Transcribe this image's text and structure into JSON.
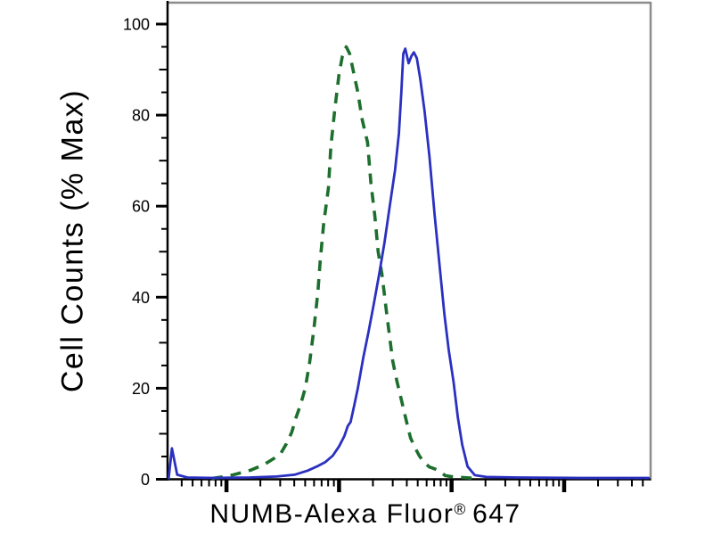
{
  "figure": {
    "ylabel": "Cell Counts (% Max)",
    "xlabel": {
      "full": "NUMB-Alexa Fluor® 647",
      "main": "NUMB-Alexa Fluor",
      "registered_mark": "®",
      "suffix": "647"
    }
  },
  "colors": {
    "background": "#ffffff",
    "axis": "#000000",
    "frame": "#8c8c8c",
    "tick_label": "#000000",
    "green_curve": "#1d6f2e",
    "blue_curve": "#2a30c0"
  },
  "chart_data": {
    "type": "line",
    "title": "",
    "xlabel": "NUMB-Alexa Fluor® 647",
    "ylabel": "Cell Counts (% Max)",
    "legend": "none",
    "grid": "off",
    "y_axis": {
      "min": 0,
      "max": 100,
      "labeled_tick_step": 20,
      "minor_tick_step": 5,
      "tick_labels": [
        "0",
        "20",
        "40",
        "60",
        "80",
        "100"
      ]
    },
    "x_axis": {
      "scale": "log",
      "tick_labels": [],
      "decade_width_frac": 0.233,
      "decade_anchor_fracs": [
        -0.111,
        0.122,
        0.355,
        0.588,
        0.821
      ]
    },
    "series": [
      {
        "name": "green-dashed-curve",
        "style": "dashed",
        "color": "#1d6f2e",
        "points_format": "[x_fraction_of_plot_width, percent_of_max]",
        "points": [
          [
            0.092,
            0.2
          ],
          [
            0.118,
            0.6
          ],
          [
            0.137,
            1.0
          ],
          [
            0.155,
            1.5
          ],
          [
            0.172,
            2.0
          ],
          [
            0.19,
            2.8
          ],
          [
            0.207,
            3.7
          ],
          [
            0.222,
            4.7
          ],
          [
            0.235,
            5.8
          ],
          [
            0.246,
            7.8
          ],
          [
            0.257,
            10.3
          ],
          [
            0.266,
            13.6
          ],
          [
            0.275,
            16.3
          ],
          [
            0.285,
            20
          ],
          [
            0.294,
            25.5
          ],
          [
            0.303,
            33
          ],
          [
            0.311,
            41
          ],
          [
            0.316,
            48
          ],
          [
            0.323,
            56
          ],
          [
            0.333,
            64
          ],
          [
            0.338,
            73
          ],
          [
            0.346,
            81
          ],
          [
            0.355,
            89
          ],
          [
            0.362,
            93
          ],
          [
            0.37,
            95
          ],
          [
            0.377,
            93.5
          ],
          [
            0.384,
            90
          ],
          [
            0.394,
            85
          ],
          [
            0.403,
            79
          ],
          [
            0.414,
            74
          ],
          [
            0.421,
            65
          ],
          [
            0.429,
            58
          ],
          [
            0.436,
            50
          ],
          [
            0.444,
            45
          ],
          [
            0.453,
            37
          ],
          [
            0.466,
            26
          ],
          [
            0.475,
            21.5
          ],
          [
            0.484,
            17.5
          ],
          [
            0.494,
            13
          ],
          [
            0.503,
            9.1
          ],
          [
            0.512,
            7.0
          ],
          [
            0.521,
            5.2
          ],
          [
            0.53,
            3.8
          ],
          [
            0.542,
            2.7
          ],
          [
            0.553,
            2.3
          ],
          [
            0.564,
            1.7
          ],
          [
            0.575,
            0.8
          ],
          [
            0.592,
            0.5
          ],
          [
            0.612,
            0.4
          ],
          [
            0.636,
            0.2
          ]
        ]
      },
      {
        "name": "blue-solid-curve",
        "style": "solid",
        "color": "#2a30c0",
        "points_format": "[x_fraction_of_plot_width, percent_of_max]",
        "points": [
          [
            0.002,
            0
          ],
          [
            0.009,
            6.8
          ],
          [
            0.02,
            1.0
          ],
          [
            0.041,
            0.4
          ],
          [
            0.096,
            0.3
          ],
          [
            0.17,
            0.4
          ],
          [
            0.226,
            0.6
          ],
          [
            0.263,
            1.0
          ],
          [
            0.29,
            1.9
          ],
          [
            0.309,
            2.8
          ],
          [
            0.327,
            3.8
          ],
          [
            0.342,
            5.2
          ],
          [
            0.355,
            7.2
          ],
          [
            0.366,
            9.5
          ],
          [
            0.373,
            11.7
          ],
          [
            0.379,
            12.6
          ],
          [
            0.386,
            16
          ],
          [
            0.394,
            20
          ],
          [
            0.405,
            26.6
          ],
          [
            0.416,
            32.4
          ],
          [
            0.427,
            38.5
          ],
          [
            0.438,
            45
          ],
          [
            0.449,
            52
          ],
          [
            0.46,
            60
          ],
          [
            0.471,
            68
          ],
          [
            0.479,
            76
          ],
          [
            0.484,
            85
          ],
          [
            0.488,
            93.5
          ],
          [
            0.492,
            94.6
          ],
          [
            0.499,
            91.4
          ],
          [
            0.505,
            93.0
          ],
          [
            0.51,
            93.8
          ],
          [
            0.516,
            92.5
          ],
          [
            0.523,
            88
          ],
          [
            0.532,
            81
          ],
          [
            0.542,
            71
          ],
          [
            0.553,
            58
          ],
          [
            0.564,
            46
          ],
          [
            0.573,
            36.3
          ],
          [
            0.582,
            28.5
          ],
          [
            0.592,
            21.4
          ],
          [
            0.601,
            13.6
          ],
          [
            0.61,
            7.6
          ],
          [
            0.621,
            2.8
          ],
          [
            0.636,
            0.9
          ],
          [
            0.66,
            0.5
          ],
          [
            0.725,
            0.4
          ],
          [
            0.854,
            0.3
          ],
          [
            0.998,
            0.3
          ]
        ]
      }
    ]
  }
}
